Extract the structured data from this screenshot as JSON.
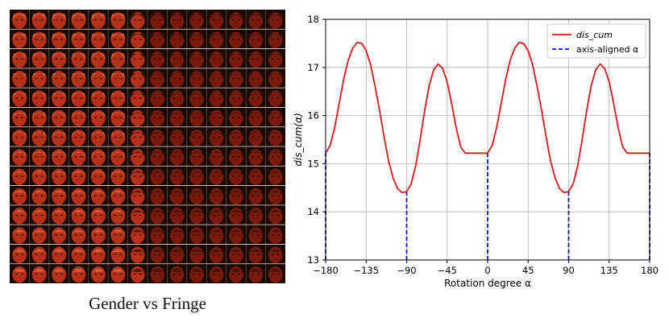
{
  "figure": {
    "caption": "Gender vs Fringe"
  },
  "image_grid": {
    "rows": 14,
    "cols": 14,
    "description_icon": "face-thumbnail-icon",
    "colors": {
      "background": "#1a0a05",
      "face": "#b8301a",
      "face_dark": "#7a1a0c",
      "skin_light": "#d8643a",
      "hair": "#3a1408",
      "separator": "#e8e0d8"
    }
  },
  "chart_data": {
    "type": "line",
    "title": "",
    "xlabel": "Rotation degree α",
    "ylabel": "dis_cum(α)",
    "xlim": [
      -180,
      180
    ],
    "ylim": [
      13,
      18
    ],
    "xticks": [
      -180,
      -135,
      -90,
      -45,
      0,
      45,
      90,
      135,
      180
    ],
    "xtick_labels": [
      "−180",
      "−135",
      "−90",
      "−45",
      "0",
      "45",
      "90",
      "135",
      "180"
    ],
    "yticks": [
      13,
      14,
      15,
      16,
      17,
      18
    ],
    "ytick_labels": [
      "13",
      "14",
      "15",
      "16",
      "17",
      "18"
    ],
    "grid": true,
    "legend_position": "top-right",
    "series": [
      {
        "name": "dis_cum",
        "color": "#e8141a",
        "style": "solid",
        "x": [
          -180,
          -175,
          -170,
          -165,
          -160,
          -155,
          -150,
          -145,
          -140,
          -135,
          -130,
          -125,
          -120,
          -115,
          -110,
          -105,
          -100,
          -95,
          -90,
          -85,
          -80,
          -75,
          -70,
          -65,
          -60,
          -55,
          -50,
          -45,
          -40,
          -35,
          -30,
          -25,
          -20,
          -15,
          -10,
          -5,
          0,
          5,
          10,
          15,
          20,
          25,
          30,
          35,
          40,
          45,
          50,
          55,
          60,
          65,
          70,
          75,
          80,
          85,
          90,
          95,
          100,
          105,
          110,
          115,
          120,
          125,
          130,
          135,
          140,
          145,
          150,
          155,
          160,
          165,
          170,
          175,
          180
        ],
        "y": [
          15.22,
          15.38,
          15.75,
          16.25,
          16.75,
          17.15,
          17.4,
          17.52,
          17.5,
          17.35,
          17.05,
          16.6,
          16.1,
          15.55,
          15.05,
          14.7,
          14.48,
          14.4,
          14.42,
          14.58,
          14.95,
          15.5,
          16.1,
          16.62,
          16.95,
          17.07,
          16.98,
          16.7,
          16.25,
          15.75,
          15.35,
          15.22,
          15.22,
          15.22,
          15.22,
          15.22,
          15.22,
          15.38,
          15.75,
          16.25,
          16.75,
          17.15,
          17.4,
          17.52,
          17.5,
          17.35,
          17.05,
          16.6,
          16.1,
          15.55,
          15.05,
          14.7,
          14.48,
          14.4,
          14.42,
          14.58,
          14.95,
          15.5,
          16.1,
          16.62,
          16.95,
          17.07,
          16.98,
          16.7,
          16.25,
          15.75,
          15.35,
          15.22,
          15.22,
          15.22,
          15.22,
          15.22,
          15.22
        ]
      },
      {
        "name": "axis-aligned α",
        "color": "#1414e0",
        "style": "dashed",
        "x": [
          -180,
          -90,
          0,
          90,
          180
        ],
        "y": [
          15.22,
          14.42,
          15.22,
          14.42,
          15.22
        ]
      }
    ]
  }
}
